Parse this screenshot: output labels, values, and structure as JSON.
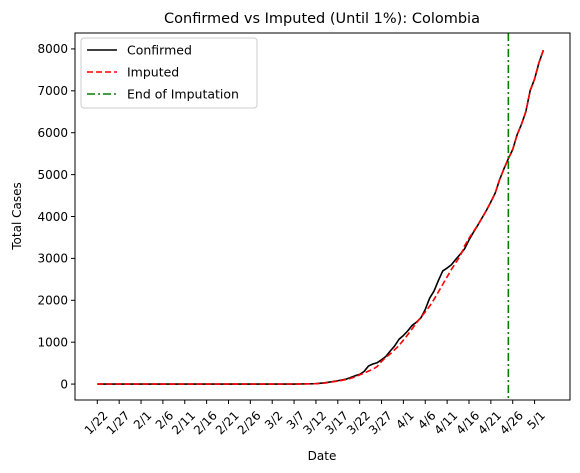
{
  "chart_data": {
    "type": "line",
    "title": "Confirmed vs Imputed (Until 1%): Colombia",
    "xlabel": "Date",
    "ylabel": "Total Cases",
    "ylim": [
      -380,
      8380
    ],
    "yticks": [
      0,
      1000,
      2000,
      3000,
      4000,
      5000,
      6000,
      7000,
      8000
    ],
    "x_start_label": "1/22",
    "x_ticks": [
      {
        "day": 0,
        "label": "1/22"
      },
      {
        "day": 5,
        "label": "1/27"
      },
      {
        "day": 10,
        "label": "2/1"
      },
      {
        "day": 15,
        "label": "2/6"
      },
      {
        "day": 20,
        "label": "2/11"
      },
      {
        "day": 25,
        "label": "2/16"
      },
      {
        "day": 30,
        "label": "2/21"
      },
      {
        "day": 35,
        "label": "2/26"
      },
      {
        "day": 40,
        "label": "3/2"
      },
      {
        "day": 45,
        "label": "3/7"
      },
      {
        "day": 50,
        "label": "3/12"
      },
      {
        "day": 55,
        "label": "3/17"
      },
      {
        "day": 60,
        "label": "3/22"
      },
      {
        "day": 65,
        "label": "3/27"
      },
      {
        "day": 70,
        "label": "4/1"
      },
      {
        "day": 75,
        "label": "4/6"
      },
      {
        "day": 80,
        "label": "4/11"
      },
      {
        "day": 85,
        "label": "4/16"
      },
      {
        "day": 90,
        "label": "4/21"
      },
      {
        "day": 95,
        "label": "4/26"
      },
      {
        "day": 100,
        "label": "5/1"
      }
    ],
    "xlim": [
      -5.1,
      108.1
    ],
    "legend_position": "top-left",
    "grid": false,
    "series": [
      {
        "name": "Confirmed",
        "color": "#000000",
        "style": "solid",
        "points": [
          [
            0,
            0
          ],
          [
            45,
            0
          ],
          [
            48,
            5
          ],
          [
            50,
            10
          ],
          [
            52,
            30
          ],
          [
            55,
            80
          ],
          [
            57,
            120
          ],
          [
            59,
            200
          ],
          [
            60,
            230
          ],
          [
            61,
            300
          ],
          [
            62,
            430
          ],
          [
            63,
            480
          ],
          [
            64,
            510
          ],
          [
            65,
            580
          ],
          [
            66,
            660
          ],
          [
            67,
            790
          ],
          [
            68,
            910
          ],
          [
            69,
            1070
          ],
          [
            70,
            1160
          ],
          [
            71,
            1270
          ],
          [
            72,
            1400
          ],
          [
            73,
            1480
          ],
          [
            74,
            1580
          ],
          [
            75,
            1780
          ],
          [
            76,
            2050
          ],
          [
            77,
            2220
          ],
          [
            78,
            2470
          ],
          [
            79,
            2700
          ],
          [
            80,
            2770
          ],
          [
            81,
            2850
          ],
          [
            82,
            2980
          ],
          [
            83,
            3100
          ],
          [
            84,
            3230
          ],
          [
            85,
            3440
          ],
          [
            86,
            3620
          ],
          [
            87,
            3790
          ],
          [
            88,
            3970
          ],
          [
            89,
            4150
          ],
          [
            90,
            4350
          ],
          [
            91,
            4560
          ],
          [
            92,
            4880
          ],
          [
            93,
            5140
          ],
          [
            94,
            5380
          ],
          [
            95,
            5600
          ],
          [
            96,
            5950
          ],
          [
            97,
            6200
          ],
          [
            98,
            6500
          ],
          [
            99,
            7010
          ],
          [
            100,
            7280
          ],
          [
            101,
            7670
          ],
          [
            102,
            7970
          ]
        ]
      },
      {
        "name": "Imputed",
        "color": "#ff0000",
        "style": "dashed",
        "points": [
          [
            0,
            0
          ],
          [
            45,
            0
          ],
          [
            48,
            5
          ],
          [
            50,
            10
          ],
          [
            52,
            25
          ],
          [
            55,
            70
          ],
          [
            57,
            110
          ],
          [
            59,
            170
          ],
          [
            60,
            220
          ],
          [
            61,
            260
          ],
          [
            62,
            310
          ],
          [
            63,
            350
          ],
          [
            64,
            420
          ],
          [
            65,
            540
          ],
          [
            66,
            640
          ],
          [
            67,
            720
          ],
          [
            68,
            820
          ],
          [
            69,
            920
          ],
          [
            70,
            1050
          ],
          [
            71,
            1180
          ],
          [
            72,
            1320
          ],
          [
            73,
            1460
          ],
          [
            74,
            1600
          ],
          [
            75,
            1720
          ],
          [
            76,
            1860
          ],
          [
            77,
            2020
          ],
          [
            78,
            2200
          ],
          [
            79,
            2380
          ],
          [
            80,
            2560
          ],
          [
            81,
            2740
          ],
          [
            82,
            2900
          ],
          [
            83,
            3060
          ],
          [
            84,
            3300
          ],
          [
            85,
            3480
          ],
          [
            86,
            3640
          ],
          [
            87,
            3790
          ],
          [
            88,
            3970
          ],
          [
            89,
            4150
          ],
          [
            90,
            4350
          ],
          [
            91,
            4560
          ],
          [
            92,
            4880
          ],
          [
            93,
            5140
          ],
          [
            94,
            5380
          ],
          [
            95,
            5600
          ],
          [
            96,
            5950
          ],
          [
            97,
            6200
          ],
          [
            98,
            6500
          ],
          [
            99,
            7010
          ],
          [
            100,
            7280
          ],
          [
            101,
            7670
          ],
          [
            102,
            7970
          ]
        ]
      }
    ],
    "vline": {
      "name": "End of Imputation",
      "day": 94,
      "color": "#008000",
      "style": "dashdot"
    }
  }
}
